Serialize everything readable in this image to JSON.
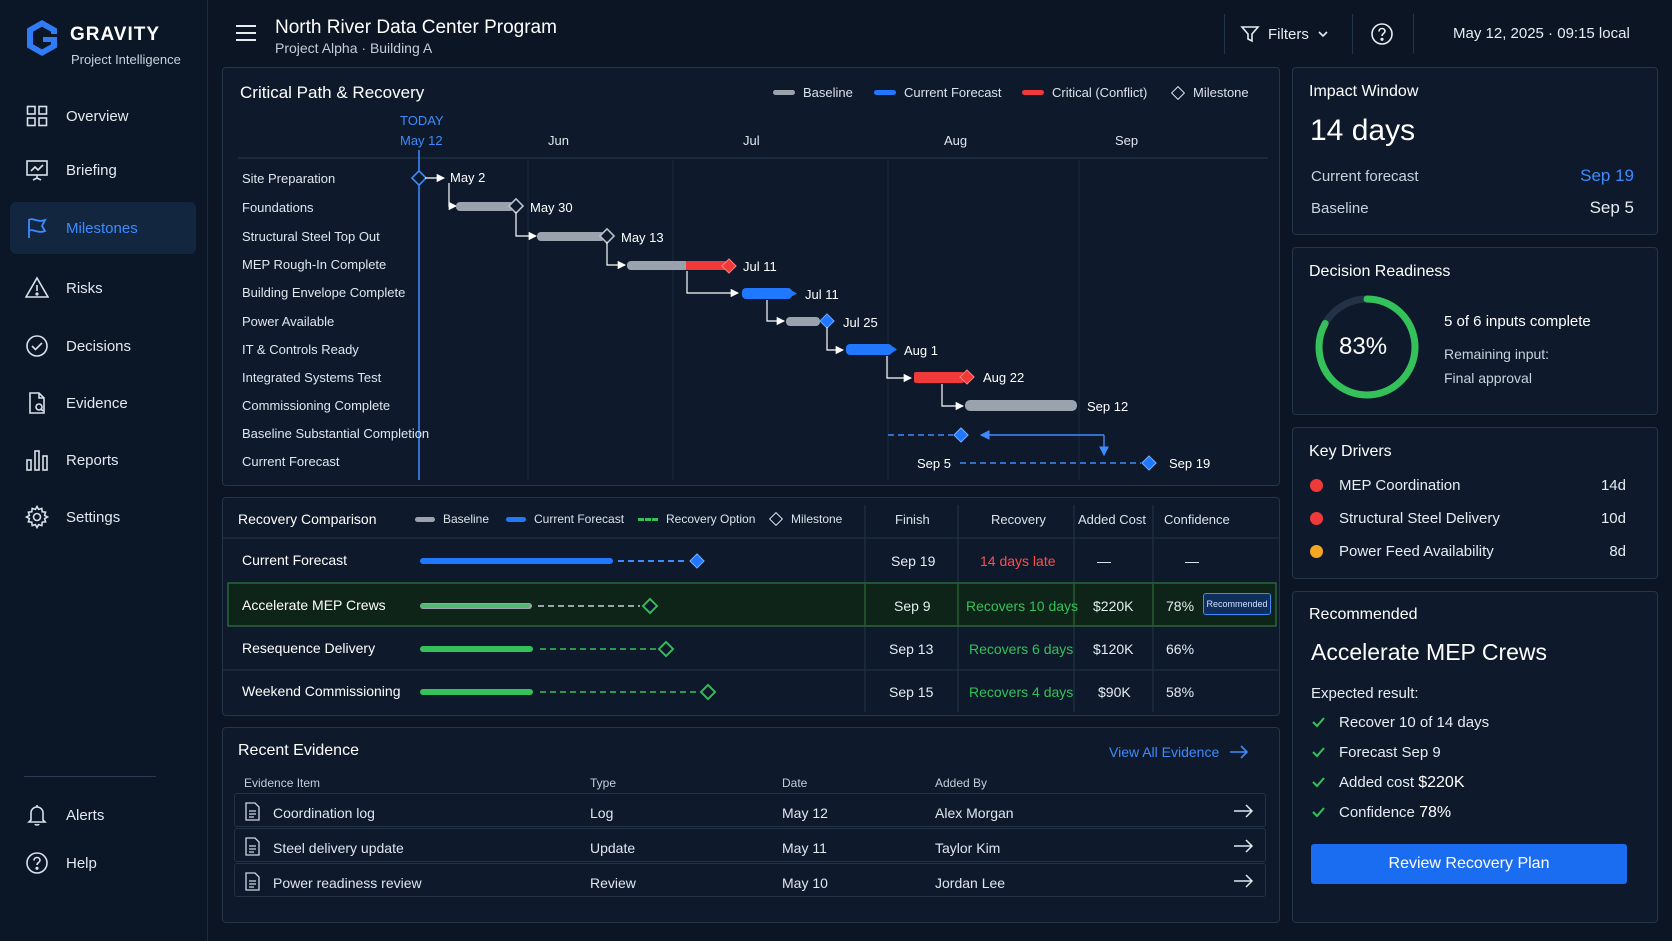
{
  "brand": {
    "name": "GRAVITY",
    "tagline": "Project Intelligence"
  },
  "sidebar": {
    "items": [
      {
        "label": "Overview",
        "icon": "grid-icon"
      },
      {
        "label": "Briefing",
        "icon": "presentation-icon"
      },
      {
        "label": "Milestones",
        "icon": "flag-icon",
        "active": true
      },
      {
        "label": "Risks",
        "icon": "warning-icon"
      },
      {
        "label": "Decisions",
        "icon": "check-circle-icon"
      },
      {
        "label": "Evidence",
        "icon": "document-icon"
      },
      {
        "label": "Reports",
        "icon": "bar-chart-icon"
      },
      {
        "label": "Settings",
        "icon": "gear-icon"
      }
    ],
    "bottom": [
      {
        "label": "Alerts",
        "icon": "bell-icon"
      },
      {
        "label": "Help",
        "icon": "help-icon"
      }
    ]
  },
  "header": {
    "title": "North River Data Center Program",
    "subtitle": "Project Alpha · Building A",
    "filters_label": "Filters",
    "datetime": "May 12, 2025 · 09:15 local"
  },
  "critical_path": {
    "title": "Critical Path & Recovery",
    "legend": [
      "Baseline",
      "Current Forecast",
      "Critical (Conflict)",
      "Milestone"
    ],
    "today_label": "TODAY",
    "today_date": "May 12",
    "months": [
      "Jun",
      "Jul",
      "Aug",
      "Sep"
    ],
    "tasks": [
      "Site Preparation",
      "Foundations",
      "Structural Steel Top Out",
      "MEP Rough-In Complete",
      "Building Envelope Complete",
      "Power Available",
      "IT & Controls Ready",
      "Integrated Systems Test",
      "Commissioning Complete",
      "Baseline Substantial Completion",
      "Current Forecast"
    ],
    "dates": [
      "May 2",
      "May 30",
      "May 13",
      "Jul 11",
      "Jul 11",
      "Jul 25",
      "Aug 1",
      "Aug 22",
      "Sep 12",
      "Sep 5",
      "Sep 19"
    ]
  },
  "recovery": {
    "title": "Recovery Comparison",
    "legend": [
      "Baseline",
      "Current Forecast",
      "Recovery Option",
      "Milestone"
    ],
    "columns": [
      "Finish",
      "Recovery",
      "Added Cost",
      "Confidence"
    ],
    "rows": [
      {
        "name": "Current Forecast",
        "finish": "Sep 19",
        "recovery": "14 days late",
        "cost": "—",
        "confidence": "—"
      },
      {
        "name": "Accelerate MEP Crews",
        "finish": "Sep 9",
        "recovery": "Recovers 10 days",
        "cost": "$220K",
        "confidence": "78%",
        "badge": "Recommended"
      },
      {
        "name": "Resequence Delivery",
        "finish": "Sep 13",
        "recovery": "Recovers 6 days",
        "cost": "$120K",
        "confidence": "66%"
      },
      {
        "name": "Weekend Commissioning",
        "finish": "Sep 15",
        "recovery": "Recovers 4 days",
        "cost": "$90K",
        "confidence": "58%"
      }
    ]
  },
  "evidence": {
    "title": "Recent Evidence",
    "view_all": "View All Evidence",
    "columns": [
      "Evidence Item",
      "Type",
      "Date",
      "Added By"
    ],
    "rows": [
      {
        "item": "Coordination log",
        "type": "Log",
        "date": "May 12",
        "by": "Alex Morgan"
      },
      {
        "item": "Steel delivery update",
        "type": "Update",
        "date": "May 11",
        "by": "Taylor Kim"
      },
      {
        "item": "Power readiness review",
        "type": "Review",
        "date": "May 10",
        "by": "Jordan Lee"
      }
    ]
  },
  "impact": {
    "title": "Impact Window",
    "value": "14 days",
    "current_label": "Current forecast",
    "current_value": "Sep 19",
    "baseline_label": "Baseline",
    "baseline_value": "Sep 5"
  },
  "readiness": {
    "title": "Decision Readiness",
    "percent_text": "83%",
    "percent": 83,
    "summary": "5 of 6 inputs complete",
    "remaining_label": "Remaining input:",
    "remaining_value": "Final approval"
  },
  "drivers": {
    "title": "Key Drivers",
    "items": [
      {
        "name": "MEP Coordination",
        "days": "14d",
        "color": "#f03a3a"
      },
      {
        "name": "Structural Steel Delivery",
        "days": "10d",
        "color": "#f03a3a"
      },
      {
        "name": "Power Feed Availability",
        "days": "8d",
        "color": "#f5a623"
      }
    ]
  },
  "recommended": {
    "title": "Recommended",
    "headline": "Accelerate MEP Crews",
    "expected_label": "Expected result:",
    "results": [
      {
        "label": "Recover 10 of 14 days",
        "value": ""
      },
      {
        "label": "Forecast Sep 9",
        "value": ""
      },
      {
        "label": "Added cost",
        "value": "$220K"
      },
      {
        "label": "Confidence",
        "value": "78%"
      }
    ],
    "cta": "Review Recovery Plan"
  },
  "colors": {
    "accent": "#3d8bff",
    "critical": "#f03a3a",
    "recovery": "#35c15a",
    "baseline": "#9aa3ad",
    "warning": "#f5a623"
  }
}
